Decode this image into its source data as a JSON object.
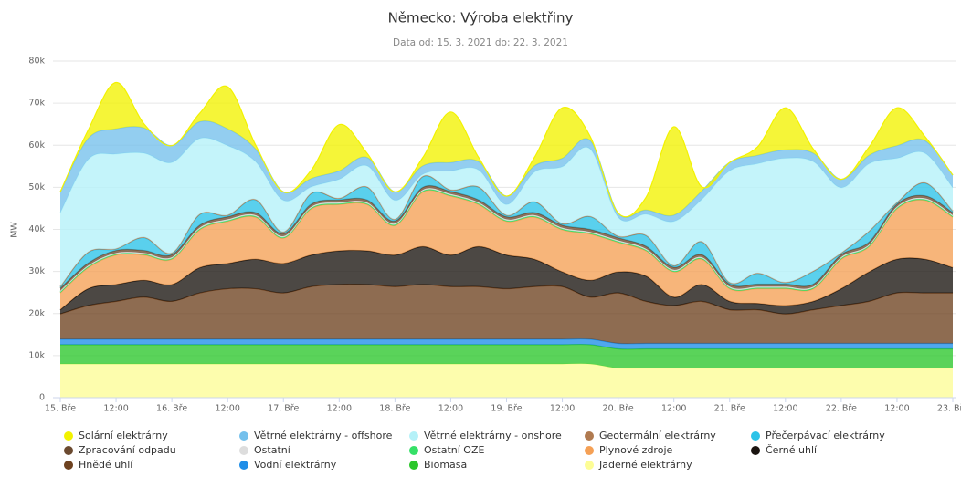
{
  "chart_data": {
    "type": "stacked-area",
    "title": "Německo: Výroba elektřiny",
    "subtitle": "Data od: 15. 3. 2021 do: 22. 3. 2021",
    "y_label": "MW",
    "categories": [
      "15. Bře",
      null,
      "12:00",
      null,
      "16. Bře",
      null,
      "12:00",
      null,
      "17. Bře",
      null,
      "12:00",
      null,
      "18. Bře",
      null,
      "12:00",
      null,
      "19. Bře",
      null,
      "12:00",
      null,
      "20. Bře",
      null,
      "12:00",
      null,
      "21. Bře",
      null,
      "12:00",
      null,
      "22. Bře",
      null,
      "12:00",
      null,
      "23. Bře"
    ],
    "ylim": [
      0,
      80000
    ],
    "yticks": [
      0,
      {
        "value": 10000,
        "label": "10k"
      },
      {
        "value": 20000,
        "label": "20k"
      },
      {
        "value": 30000,
        "label": "30k"
      },
      {
        "value": 40000,
        "label": "40k"
      },
      {
        "value": 50000,
        "label": "50k"
      },
      {
        "value": 60000,
        "label": "60k"
      },
      {
        "value": 70000,
        "label": "70k"
      },
      {
        "value": 80000,
        "label": "80k"
      }
    ],
    "grid": true,
    "legend": "bottom",
    "series": [
      {
        "name": "Solární elektrárny",
        "color": "#f2f200",
        "values": [
          0,
          2000,
          11000,
          1000,
          0,
          2000,
          10000,
          1000,
          0,
          2000,
          11000,
          1000,
          0,
          2000,
          12000,
          1000,
          0,
          2000,
          12000,
          1000,
          0,
          3000,
          21000,
          1000,
          0,
          2000,
          10000,
          1000,
          0,
          2000,
          9000,
          1000,
          0
        ]
      },
      {
        "name": "Větrné elektrárny - offshore",
        "color": "#74c0ec",
        "values": [
          5000,
          5000,
          6000,
          6000,
          4000,
          4000,
          4000,
          3000,
          2000,
          2000,
          2000,
          2000,
          2000,
          2000,
          2000,
          2000,
          2000,
          1500,
          2000,
          2000,
          1000,
          1000,
          1500,
          2000,
          2000,
          2000,
          2000,
          2000,
          2000,
          2000,
          3000,
          3000,
          3000
        ]
      },
      {
        "name": "Větrné elektrárny - onshore",
        "color": "#b4f1f8",
        "values": [
          17500,
          22000,
          22500,
          20000,
          21500,
          18000,
          16500,
          9000,
          7500,
          1500,
          4500,
          5000,
          4500,
          500,
          4500,
          4000,
          2500,
          7000,
          13500,
          16000,
          4500,
          5000,
          10500,
          10000,
          26500,
          26000,
          29500,
          26000,
          15500,
          16000,
          10500,
          7000,
          5500
        ]
      },
      {
        "name": "Geotermální elektrárny",
        "color": "#b07a50",
        "values": [
          100,
          100,
          100,
          100,
          100,
          100,
          100,
          100,
          100,
          100,
          100,
          100,
          100,
          100,
          100,
          100,
          100,
          100,
          100,
          100,
          100,
          100,
          100,
          100,
          100,
          100,
          100,
          100,
          100,
          100,
          100,
          100,
          100
        ]
      },
      {
        "name": "Přečerpávací elektrárny",
        "color": "#2cc3e8",
        "values": [
          300,
          2500,
          300,
          3000,
          300,
          2500,
          300,
          3000,
          300,
          2500,
          300,
          3000,
          300,
          2500,
          300,
          3000,
          300,
          2500,
          300,
          3000,
          300,
          2500,
          300,
          3000,
          300,
          2500,
          300,
          3000,
          300,
          2500,
          300,
          3000,
          300
        ]
      },
      {
        "name": "Zpracování odpadu",
        "color": "#6b4a30",
        "values": [
          600,
          600,
          600,
          600,
          600,
          600,
          600,
          600,
          600,
          600,
          600,
          600,
          600,
          600,
          600,
          600,
          600,
          600,
          600,
          600,
          600,
          600,
          600,
          600,
          600,
          600,
          600,
          600,
          600,
          600,
          600,
          600,
          600
        ]
      },
      {
        "name": "Ostatní",
        "color": "#dddddd",
        "values": [
          300,
          300,
          300,
          300,
          300,
          300,
          300,
          300,
          300,
          300,
          300,
          300,
          300,
          300,
          300,
          300,
          300,
          300,
          300,
          300,
          300,
          300,
          300,
          300,
          300,
          300,
          300,
          300,
          300,
          300,
          300,
          300,
          300
        ]
      },
      {
        "name": "Ostatní OZE",
        "color": "#35e067",
        "values": [
          200,
          200,
          200,
          200,
          200,
          200,
          200,
          200,
          200,
          200,
          200,
          200,
          200,
          200,
          200,
          200,
          200,
          200,
          200,
          200,
          200,
          200,
          200,
          200,
          200,
          200,
          200,
          200,
          200,
          200,
          200,
          200,
          200
        ]
      },
      {
        "name": "Plynové zdroje",
        "color": "#f5a055",
        "values": [
          4000,
          5000,
          7000,
          6000,
          6000,
          9000,
          10000,
          10000,
          6000,
          11000,
          11000,
          11000,
          7000,
          13000,
          14000,
          10000,
          8000,
          10000,
          10000,
          11000,
          7000,
          6000,
          6000,
          6000,
          3000,
          3500,
          4000,
          3000,
          7000,
          6000,
          12000,
          14000,
          12000
        ]
      },
      {
        "name": "Černé uhlí",
        "color": "#1a1410",
        "values": [
          1000,
          4000,
          4000,
          4000,
          4000,
          6000,
          6000,
          7000,
          7000,
          7500,
          8000,
          8000,
          7500,
          9000,
          7500,
          9500,
          8000,
          6500,
          3500,
          4000,
          5000,
          6000,
          2000,
          4000,
          2000,
          1500,
          2000,
          2000,
          4000,
          7000,
          8000,
          8000,
          6000
        ]
      },
      {
        "name": "Hnědé uhlí",
        "color": "#6e4220",
        "values": [
          6000,
          8000,
          9000,
          10000,
          9000,
          11000,
          12000,
          12000,
          11000,
          12500,
          13000,
          13000,
          12500,
          13000,
          12500,
          12500,
          12000,
          12500,
          12500,
          10000,
          12000,
          10000,
          9000,
          10000,
          8000,
          8000,
          7000,
          8000,
          9000,
          10000,
          12000,
          12000,
          12000
        ]
      },
      {
        "name": "Vodní elektrárny",
        "color": "#1f8ee8",
        "values": [
          1300,
          1300,
          1300,
          1300,
          1300,
          1300,
          1300,
          1300,
          1300,
          1300,
          1300,
          1300,
          1300,
          1300,
          1300,
          1300,
          1300,
          1300,
          1300,
          1300,
          1300,
          1300,
          1300,
          1300,
          1300,
          1300,
          1300,
          1300,
          1300,
          1300,
          1300,
          1300,
          1300
        ]
      },
      {
        "name": "Biomasa",
        "color": "#2cc72c",
        "values": [
          4600,
          4600,
          4600,
          4600,
          4600,
          4600,
          4600,
          4600,
          4600,
          4600,
          4600,
          4600,
          4600,
          4600,
          4600,
          4600,
          4600,
          4600,
          4600,
          4600,
          4600,
          4600,
          4600,
          4600,
          4600,
          4600,
          4600,
          4600,
          4600,
          4600,
          4600,
          4600,
          4600
        ]
      },
      {
        "name": "Jaderné elektrárny",
        "color": "#fdfd96",
        "values": [
          8000,
          8000,
          8000,
          8000,
          8000,
          8000,
          8000,
          8000,
          8000,
          8000,
          8000,
          8000,
          8000,
          8000,
          8000,
          8000,
          8000,
          8000,
          8000,
          8000,
          7000,
          7000,
          7000,
          7000,
          7000,
          7000,
          7000,
          7000,
          7000,
          7000,
          7000,
          7000,
          7000
        ]
      }
    ]
  }
}
